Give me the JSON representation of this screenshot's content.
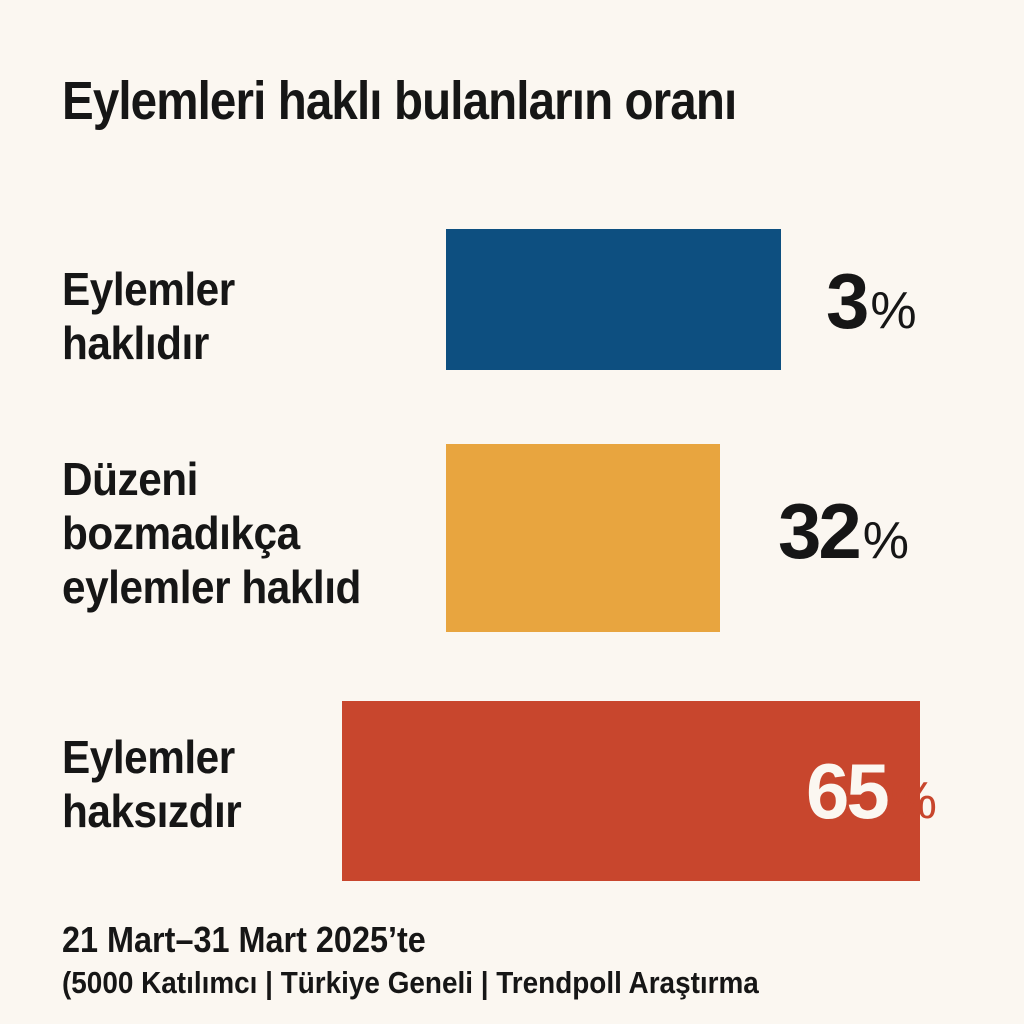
{
  "chart_data": {
    "type": "bar",
    "title": "Eylemleri haklı bulanların oranı",
    "categories": [
      "Eylemler\nhaklıdır",
      "Düzeni\nbozmadıkça\neylemler haklıd",
      "Eylemler\nhaksızdır"
    ],
    "values": [
      3,
      32,
      65
    ],
    "value_labels": [
      "3",
      "32",
      "65"
    ],
    "unit": "%",
    "colors": [
      "#0d4f80",
      "#e8a53f",
      "#c8462d"
    ],
    "orientation": "horizontal"
  },
  "footer": {
    "line1": "21 Mart–31 Mart 2025’te",
    "line2": "(5000 Katılımcı | Türkiye Geneli | Trendpoll Araştırma"
  }
}
